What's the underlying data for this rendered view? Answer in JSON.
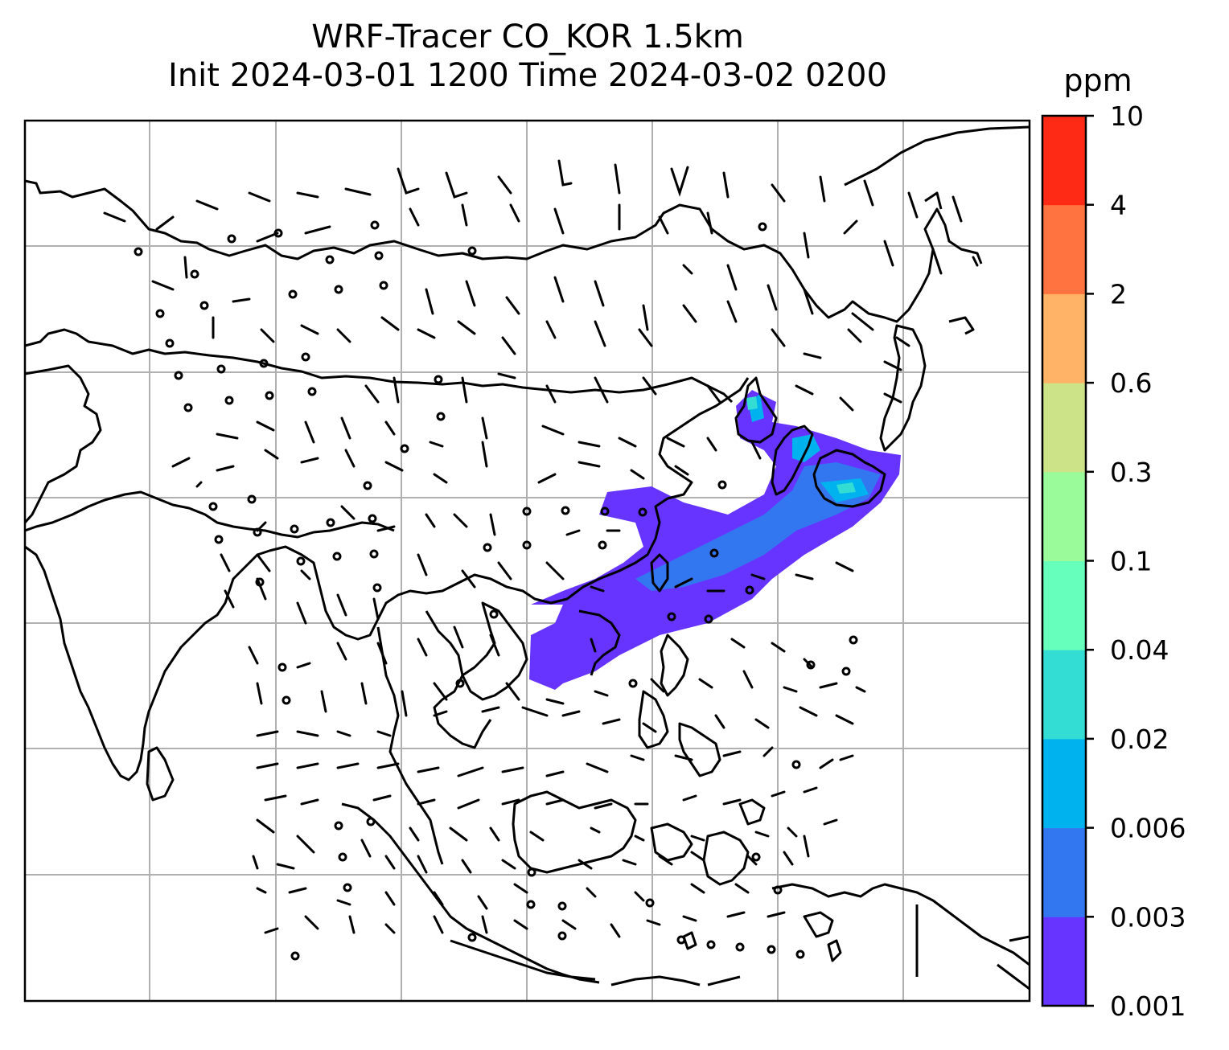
{
  "title": {
    "line1": "WRF-Tracer CO_KOR 1.5km",
    "line2": "Init 2024-03-01 1200 Time 2024-03-02 0200"
  },
  "colorbar": {
    "units": "ppm",
    "levels": [
      {
        "label": "0.001",
        "color": "#6633ff"
      },
      {
        "label": "0.003",
        "color": "#3377f0"
      },
      {
        "label": "0.006",
        "color": "#00b3ee"
      },
      {
        "label": "0.02",
        "color": "#33ddd3"
      },
      {
        "label": "0.04",
        "color": "#66ffbb"
      },
      {
        "label": "0.1",
        "color": "#99fb99"
      },
      {
        "label": "0.3",
        "color": "#cce388"
      },
      {
        "label": "0.6",
        "color": "#ffb366"
      },
      {
        "label": "2",
        "color": "#ff7340"
      },
      {
        "label": "4",
        "color": "#ff2a15"
      },
      {
        "label": "10",
        "color": ""
      }
    ]
  },
  "map": {
    "gridlines": true,
    "coastline_color": "#000000",
    "plume_colors": [
      "#6633ff",
      "#3377f0",
      "#00b3ee",
      "#33ddd3"
    ]
  }
}
